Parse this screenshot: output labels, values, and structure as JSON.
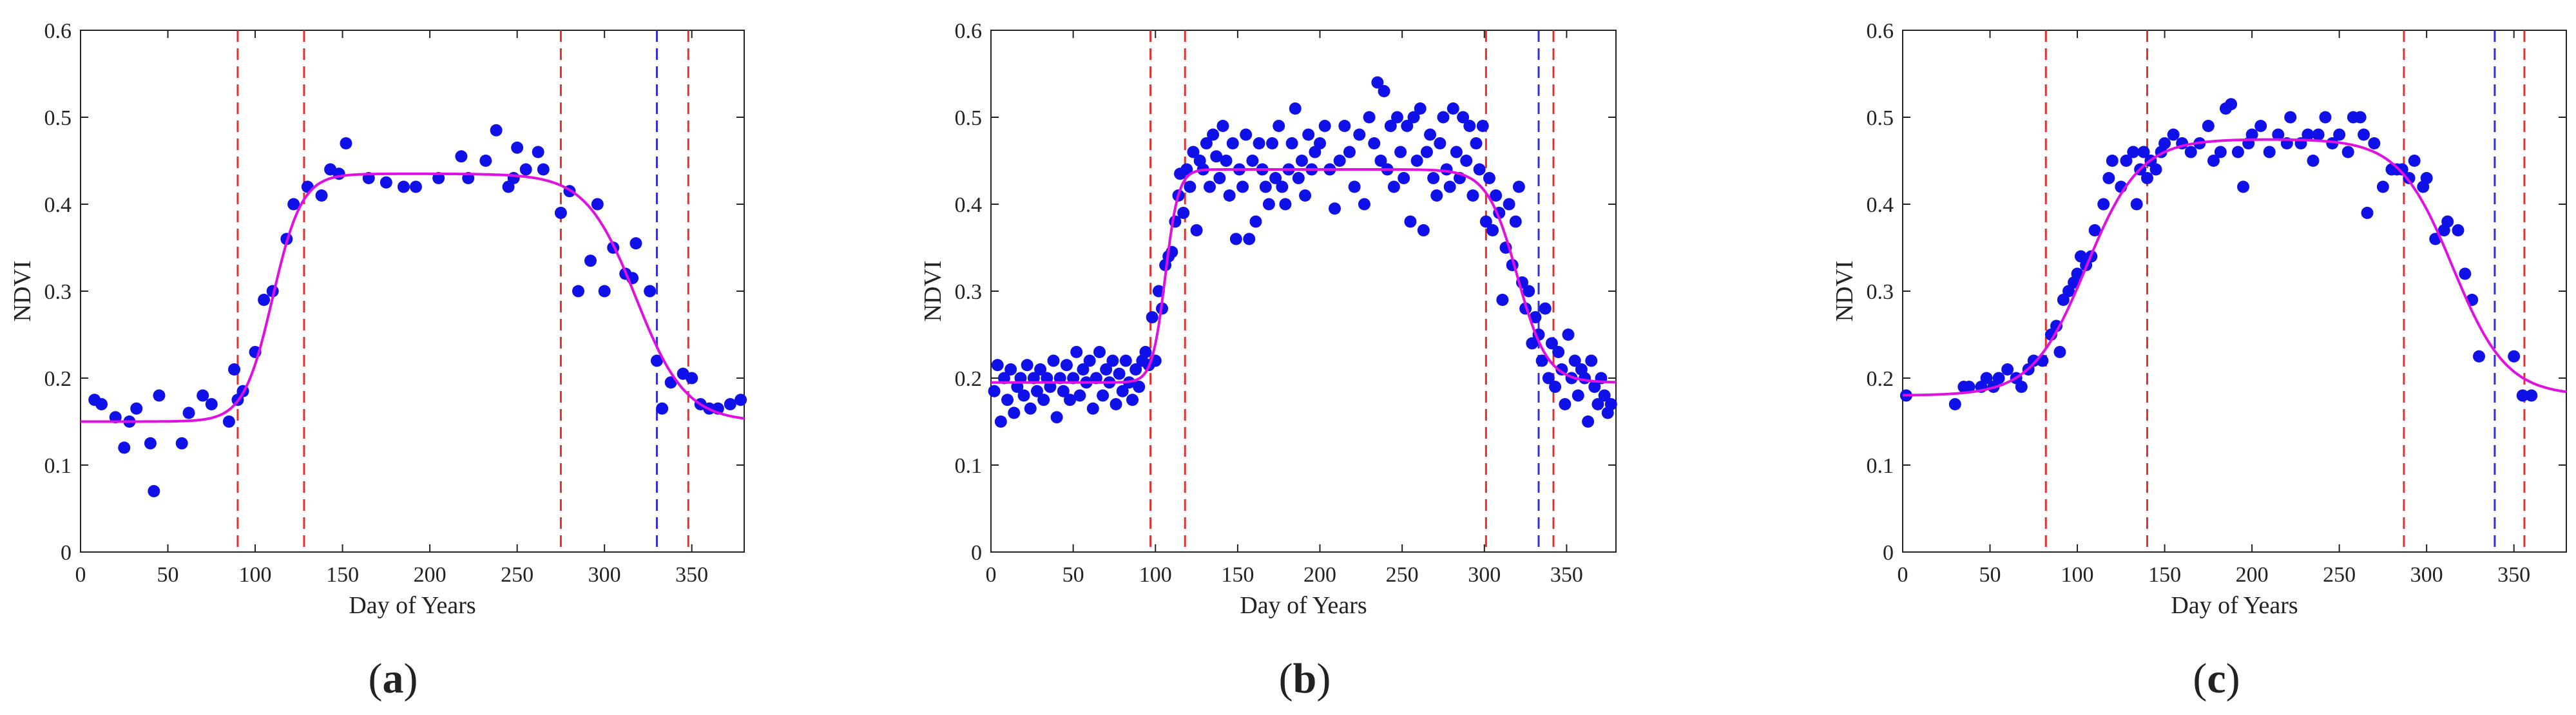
{
  "colors": {
    "points": "#1010e8",
    "curve": "#e010e0",
    "red_line": "#e03030",
    "blue_line": "#3030e0",
    "axis": "#222222"
  },
  "chart_data": [
    {
      "type": "scatter",
      "panel_label": "a",
      "xlabel": "Day of Years",
      "ylabel": "NDVI",
      "xlim": [
        0,
        380
      ],
      "ylim": [
        0,
        0.6
      ],
      "xticks": [
        0,
        50,
        100,
        150,
        200,
        250,
        300,
        350
      ],
      "yticks": [
        0,
        0.1,
        0.2,
        0.3,
        0.4,
        0.5,
        0.6
      ],
      "red_vlines": [
        90,
        128,
        275,
        348
      ],
      "blue_vlines": [
        330
      ],
      "curve": {
        "base": 0.15,
        "amp": 0.285,
        "sos": 110,
        "eos": 318,
        "k1": 0.12,
        "k2": 0.07
      },
      "points": [
        [
          8,
          0.175
        ],
        [
          12,
          0.17
        ],
        [
          20,
          0.155
        ],
        [
          25,
          0.12
        ],
        [
          28,
          0.15
        ],
        [
          32,
          0.165
        ],
        [
          40,
          0.125
        ],
        [
          42,
          0.07
        ],
        [
          45,
          0.18
        ],
        [
          58,
          0.125
        ],
        [
          62,
          0.16
        ],
        [
          70,
          0.18
        ],
        [
          75,
          0.17
        ],
        [
          85,
          0.15
        ],
        [
          88,
          0.21
        ],
        [
          90,
          0.175
        ],
        [
          93,
          0.185
        ],
        [
          100,
          0.23
        ],
        [
          105,
          0.29
        ],
        [
          110,
          0.3
        ],
        [
          118,
          0.36
        ],
        [
          122,
          0.4
        ],
        [
          130,
          0.42
        ],
        [
          138,
          0.41
        ],
        [
          143,
          0.44
        ],
        [
          148,
          0.435
        ],
        [
          152,
          0.47
        ],
        [
          165,
          0.43
        ],
        [
          175,
          0.425
        ],
        [
          185,
          0.42
        ],
        [
          192,
          0.42
        ],
        [
          205,
          0.43
        ],
        [
          218,
          0.455
        ],
        [
          222,
          0.43
        ],
        [
          232,
          0.45
        ],
        [
          238,
          0.485
        ],
        [
          245,
          0.42
        ],
        [
          248,
          0.43
        ],
        [
          250,
          0.465
        ],
        [
          255,
          0.44
        ],
        [
          262,
          0.46
        ],
        [
          265,
          0.44
        ],
        [
          275,
          0.39
        ],
        [
          280,
          0.415
        ],
        [
          285,
          0.3
        ],
        [
          292,
          0.335
        ],
        [
          296,
          0.4
        ],
        [
          300,
          0.3
        ],
        [
          305,
          0.35
        ],
        [
          312,
          0.32
        ],
        [
          316,
          0.315
        ],
        [
          318,
          0.355
        ],
        [
          326,
          0.3
        ],
        [
          330,
          0.22
        ],
        [
          333,
          0.165
        ],
        [
          338,
          0.195
        ],
        [
          345,
          0.205
        ],
        [
          350,
          0.2
        ],
        [
          355,
          0.17
        ],
        [
          360,
          0.165
        ],
        [
          365,
          0.165
        ],
        [
          372,
          0.17
        ],
        [
          378,
          0.175
        ]
      ]
    },
    {
      "type": "scatter",
      "panel_label": "b",
      "xlabel": "Day of Years",
      "ylabel": "NDVI",
      "xlim": [
        0,
        380
      ],
      "ylim": [
        0,
        0.6
      ],
      "xticks": [
        0,
        50,
        100,
        150,
        200,
        250,
        300,
        350
      ],
      "yticks": [
        0,
        0.1,
        0.2,
        0.3,
        0.4,
        0.5,
        0.6
      ],
      "red_vlines": [
        97,
        118,
        301,
        342
      ],
      "blue_vlines": [
        333
      ],
      "curve": {
        "base": 0.195,
        "amp": 0.245,
        "sos": 106,
        "eos": 320,
        "k1": 0.25,
        "k2": 0.11
      },
      "points": [
        [
          2,
          0.185
        ],
        [
          4,
          0.215
        ],
        [
          6,
          0.15
        ],
        [
          8,
          0.2
        ],
        [
          10,
          0.175
        ],
        [
          12,
          0.21
        ],
        [
          14,
          0.16
        ],
        [
          16,
          0.19
        ],
        [
          18,
          0.2
        ],
        [
          20,
          0.18
        ],
        [
          22,
          0.215
        ],
        [
          24,
          0.165
        ],
        [
          26,
          0.2
        ],
        [
          28,
          0.185
        ],
        [
          30,
          0.21
        ],
        [
          32,
          0.175
        ],
        [
          34,
          0.2
        ],
        [
          36,
          0.19
        ],
        [
          38,
          0.22
        ],
        [
          40,
          0.155
        ],
        [
          42,
          0.2
        ],
        [
          44,
          0.185
        ],
        [
          46,
          0.215
        ],
        [
          48,
          0.175
        ],
        [
          50,
          0.2
        ],
        [
          52,
          0.23
        ],
        [
          54,
          0.18
        ],
        [
          56,
          0.21
        ],
        [
          58,
          0.195
        ],
        [
          60,
          0.22
        ],
        [
          62,
          0.165
        ],
        [
          64,
          0.2
        ],
        [
          66,
          0.23
        ],
        [
          68,
          0.18
        ],
        [
          70,
          0.21
        ],
        [
          72,
          0.195
        ],
        [
          74,
          0.22
        ],
        [
          76,
          0.17
        ],
        [
          78,
          0.205
        ],
        [
          80,
          0.185
        ],
        [
          82,
          0.22
        ],
        [
          84,
          0.195
        ],
        [
          86,
          0.175
        ],
        [
          88,
          0.21
        ],
        [
          90,
          0.19
        ],
        [
          92,
          0.22
        ],
        [
          94,
          0.23
        ],
        [
          96,
          0.215
        ],
        [
          98,
          0.27
        ],
        [
          100,
          0.22
        ],
        [
          102,
          0.3
        ],
        [
          104,
          0.28
        ],
        [
          106,
          0.33
        ],
        [
          108,
          0.34
        ],
        [
          110,
          0.345
        ],
        [
          112,
          0.38
        ],
        [
          114,
          0.41
        ],
        [
          115,
          0.435
        ],
        [
          117,
          0.39
        ],
        [
          119,
          0.44
        ],
        [
          121,
          0.42
        ],
        [
          123,
          0.46
        ],
        [
          125,
          0.37
        ],
        [
          127,
          0.45
        ],
        [
          129,
          0.44
        ],
        [
          131,
          0.47
        ],
        [
          133,
          0.42
        ],
        [
          135,
          0.48
        ],
        [
          137,
          0.455
        ],
        [
          139,
          0.43
        ],
        [
          141,
          0.49
        ],
        [
          143,
          0.45
        ],
        [
          145,
          0.41
        ],
        [
          147,
          0.47
        ],
        [
          149,
          0.36
        ],
        [
          151,
          0.44
        ],
        [
          153,
          0.42
        ],
        [
          155,
          0.48
        ],
        [
          157,
          0.36
        ],
        [
          159,
          0.45
        ],
        [
          161,
          0.38
        ],
        [
          163,
          0.47
        ],
        [
          165,
          0.44
        ],
        [
          167,
          0.42
        ],
        [
          169,
          0.4
        ],
        [
          171,
          0.47
        ],
        [
          173,
          0.43
        ],
        [
          175,
          0.49
        ],
        [
          177,
          0.42
        ],
        [
          179,
          0.4
        ],
        [
          181,
          0.44
        ],
        [
          183,
          0.47
        ],
        [
          185,
          0.51
        ],
        [
          187,
          0.43
        ],
        [
          189,
          0.45
        ],
        [
          191,
          0.41
        ],
        [
          193,
          0.48
        ],
        [
          195,
          0.44
        ],
        [
          197,
          0.46
        ],
        [
          200,
          0.47
        ],
        [
          203,
          0.49
        ],
        [
          206,
          0.44
        ],
        [
          209,
          0.395
        ],
        [
          212,
          0.45
        ],
        [
          215,
          0.49
        ],
        [
          218,
          0.46
        ],
        [
          221,
          0.42
        ],
        [
          224,
          0.48
        ],
        [
          227,
          0.4
        ],
        [
          230,
          0.5
        ],
        [
          233,
          0.47
        ],
        [
          235,
          0.54
        ],
        [
          237,
          0.45
        ],
        [
          239,
          0.53
        ],
        [
          241,
          0.44
        ],
        [
          243,
          0.49
        ],
        [
          245,
          0.42
        ],
        [
          247,
          0.5
        ],
        [
          249,
          0.46
        ],
        [
          251,
          0.43
        ],
        [
          253,
          0.49
        ],
        [
          255,
          0.38
        ],
        [
          257,
          0.5
        ],
        [
          259,
          0.45
        ],
        [
          261,
          0.51
        ],
        [
          263,
          0.37
        ],
        [
          265,
          0.46
        ],
        [
          267,
          0.48
        ],
        [
          269,
          0.43
        ],
        [
          271,
          0.41
        ],
        [
          273,
          0.47
        ],
        [
          275,
          0.5
        ],
        [
          277,
          0.44
        ],
        [
          279,
          0.42
        ],
        [
          281,
          0.51
        ],
        [
          283,
          0.46
        ],
        [
          285,
          0.43
        ],
        [
          287,
          0.5
        ],
        [
          289,
          0.45
        ],
        [
          291,
          0.49
        ],
        [
          293,
          0.41
        ],
        [
          295,
          0.47
        ],
        [
          297,
          0.44
        ],
        [
          299,
          0.49
        ],
        [
          301,
          0.38
        ],
        [
          303,
          0.43
        ],
        [
          305,
          0.37
        ],
        [
          307,
          0.41
        ],
        [
          309,
          0.39
        ],
        [
          311,
          0.29
        ],
        [
          313,
          0.35
        ],
        [
          315,
          0.4
        ],
        [
          317,
          0.33
        ],
        [
          319,
          0.38
        ],
        [
          321,
          0.42
        ],
        [
          323,
          0.31
        ],
        [
          325,
          0.28
        ],
        [
          327,
          0.3
        ],
        [
          329,
          0.24
        ],
        [
          331,
          0.27
        ],
        [
          333,
          0.25
        ],
        [
          335,
          0.22
        ],
        [
          337,
          0.28
        ],
        [
          339,
          0.2
        ],
        [
          341,
          0.24
        ],
        [
          343,
          0.19
        ],
        [
          345,
          0.23
        ],
        [
          347,
          0.21
        ],
        [
          349,
          0.17
        ],
        [
          351,
          0.25
        ],
        [
          353,
          0.2
        ],
        [
          355,
          0.22
        ],
        [
          357,
          0.18
        ],
        [
          359,
          0.21
        ],
        [
          361,
          0.2
        ],
        [
          363,
          0.15
        ],
        [
          365,
          0.22
        ],
        [
          367,
          0.19
        ],
        [
          369,
          0.17
        ],
        [
          371,
          0.2
        ],
        [
          373,
          0.18
        ],
        [
          375,
          0.16
        ],
        [
          377,
          0.17
        ]
      ]
    },
    {
      "type": "scatter",
      "panel_label": "c",
      "xlabel": "Day of Years",
      "ylabel": "NDVI",
      "xlim": [
        0,
        380
      ],
      "ylim": [
        0,
        0.6
      ],
      "xticks": [
        0,
        50,
        100,
        150,
        200,
        250,
        300,
        350
      ],
      "yticks": [
        0,
        0.1,
        0.2,
        0.3,
        0.4,
        0.5,
        0.6
      ],
      "red_vlines": [
        82,
        140,
        287,
        356
      ],
      "blue_vlines": [
        339
      ],
      "curve": {
        "base": 0.18,
        "amp": 0.295,
        "sos": 105,
        "eos": 315,
        "k1": 0.065,
        "k2": 0.065
      },
      "points": [
        [
          2,
          0.18
        ],
        [
          30,
          0.17
        ],
        [
          35,
          0.19
        ],
        [
          38,
          0.19
        ],
        [
          45,
          0.19
        ],
        [
          48,
          0.2
        ],
        [
          52,
          0.19
        ],
        [
          55,
          0.2
        ],
        [
          60,
          0.21
        ],
        [
          65,
          0.2
        ],
        [
          68,
          0.19
        ],
        [
          72,
          0.21
        ],
        [
          75,
          0.22
        ],
        [
          80,
          0.22
        ],
        [
          85,
          0.25
        ],
        [
          88,
          0.26
        ],
        [
          90,
          0.23
        ],
        [
          92,
          0.29
        ],
        [
          95,
          0.3
        ],
        [
          98,
          0.31
        ],
        [
          100,
          0.32
        ],
        [
          102,
          0.34
        ],
        [
          105,
          0.33
        ],
        [
          108,
          0.34
        ],
        [
          110,
          0.37
        ],
        [
          115,
          0.4
        ],
        [
          118,
          0.43
        ],
        [
          120,
          0.45
        ],
        [
          125,
          0.42
        ],
        [
          128,
          0.45
        ],
        [
          132,
          0.46
        ],
        [
          134,
          0.4
        ],
        [
          136,
          0.44
        ],
        [
          138,
          0.46
        ],
        [
          140,
          0.43
        ],
        [
          142,
          0.45
        ],
        [
          145,
          0.44
        ],
        [
          148,
          0.46
        ],
        [
          150,
          0.47
        ],
        [
          155,
          0.48
        ],
        [
          160,
          0.47
        ],
        [
          165,
          0.46
        ],
        [
          170,
          0.47
        ],
        [
          175,
          0.49
        ],
        [
          178,
          0.45
        ],
        [
          182,
          0.46
        ],
        [
          185,
          0.51
        ],
        [
          188,
          0.515
        ],
        [
          192,
          0.46
        ],
        [
          195,
          0.42
        ],
        [
          198,
          0.47
        ],
        [
          200,
          0.48
        ],
        [
          205,
          0.49
        ],
        [
          210,
          0.46
        ],
        [
          215,
          0.48
        ],
        [
          220,
          0.47
        ],
        [
          222,
          0.5
        ],
        [
          228,
          0.47
        ],
        [
          232,
          0.48
        ],
        [
          235,
          0.45
        ],
        [
          238,
          0.48
        ],
        [
          242,
          0.5
        ],
        [
          246,
          0.47
        ],
        [
          250,
          0.48
        ],
        [
          255,
          0.46
        ],
        [
          258,
          0.5
        ],
        [
          262,
          0.5
        ],
        [
          264,
          0.48
        ],
        [
          266,
          0.39
        ],
        [
          270,
          0.47
        ],
        [
          275,
          0.42
        ],
        [
          280,
          0.44
        ],
        [
          283,
          0.44
        ],
        [
          286,
          0.44
        ],
        [
          290,
          0.43
        ],
        [
          293,
          0.45
        ],
        [
          298,
          0.42
        ],
        [
          300,
          0.43
        ],
        [
          305,
          0.36
        ],
        [
          310,
          0.37
        ],
        [
          312,
          0.38
        ],
        [
          318,
          0.37
        ],
        [
          322,
          0.32
        ],
        [
          326,
          0.29
        ],
        [
          330,
          0.225
        ],
        [
          350,
          0.225
        ],
        [
          355,
          0.18
        ],
        [
          360,
          0.18
        ]
      ]
    }
  ]
}
